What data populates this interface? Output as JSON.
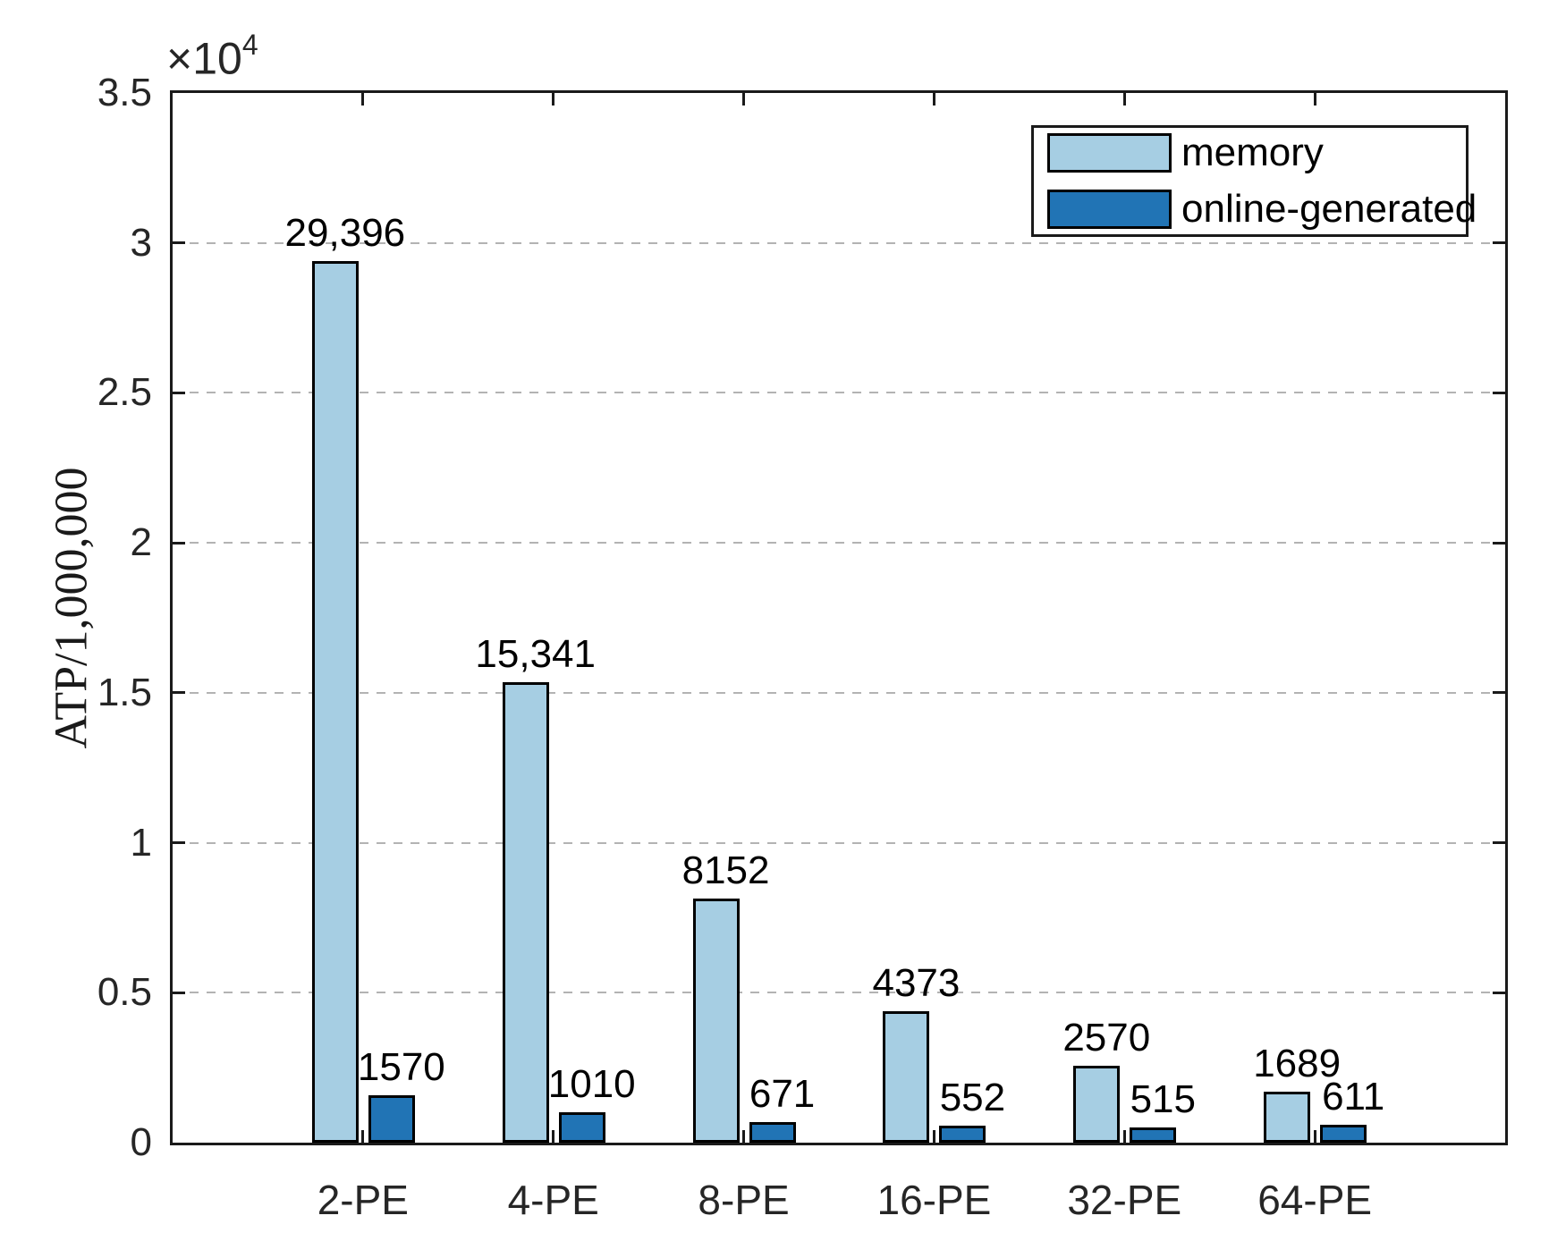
{
  "chart_data": {
    "type": "bar",
    "title": "",
    "categories": [
      "2-PE",
      "4-PE",
      "8-PE",
      "16-PE",
      "32-PE",
      "64-PE"
    ],
    "series": [
      {
        "name": "memory",
        "color": "#A6CEE3",
        "values": [
          29396,
          15341,
          8152,
          4373,
          2570,
          1689
        ],
        "value_labels": [
          "29,396",
          "15,341",
          "8152",
          "4373",
          "2570",
          "1689"
        ]
      },
      {
        "name": "online-generated",
        "color": "#2174B5",
        "values": [
          1570,
          1010,
          671,
          552,
          515,
          611
        ],
        "value_labels": [
          "1570",
          "1010",
          "671",
          "552",
          "515",
          "611"
        ]
      }
    ],
    "xlabel": "",
    "ylabel": "ATP/1,000,000",
    "y_scale_label": {
      "base": "×10",
      "exponent": "4"
    },
    "ylim": [
      0,
      35000
    ],
    "yticks": [
      0,
      5000,
      10000,
      15000,
      20000,
      25000,
      30000,
      35000
    ],
    "ytick_labels": [
      "0",
      "0.5",
      "1",
      "1.5",
      "2",
      "2.5",
      "3",
      "3.5"
    ],
    "grid": {
      "horizontal": true,
      "style": "dashed",
      "color": "#b3b3b3"
    },
    "axis_color": "#1a1a1a",
    "tick_label_color": "#262626",
    "bar_outline_color": "#000000",
    "legend": {
      "position": "top-right",
      "items": [
        "memory",
        "online-generated"
      ]
    }
  }
}
